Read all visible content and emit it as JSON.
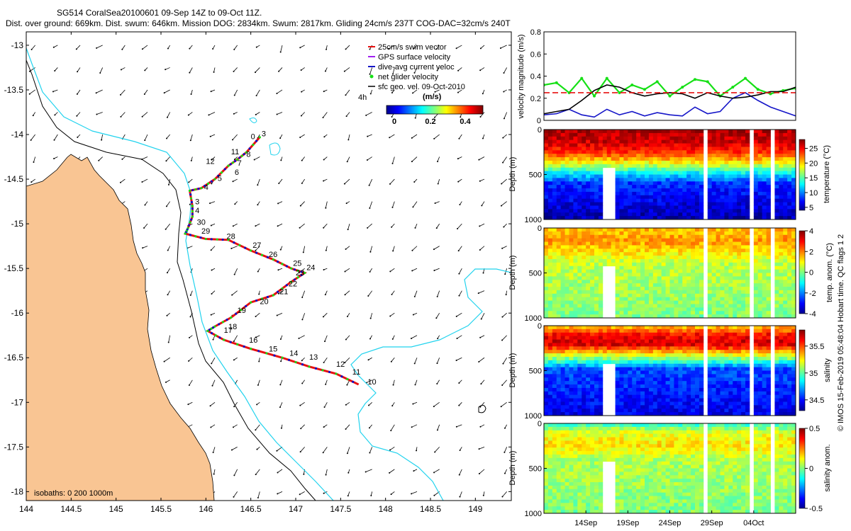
{
  "title": {
    "line1": "SG514 CoralSea20100601 09-Sep 14Z to 09-Oct 11Z.",
    "line2": "Dist. over ground: 669km. Dist. swum: 646km. Mission DOG: 2834km. Swum: 2817km. Gliding 24cm/s 237T COG-DAC=32cm/s 240T"
  },
  "side_caption": "© IMOS 15-Feb-2019 05:48:04 Hobart time. QC flags 1  2",
  "colors": {
    "land": "#f9c593",
    "isobath_200": "#000000",
    "isobath_1000": "#22d3ee",
    "track": "#e81010",
    "track_alt": "#1010c8",
    "swim_vector": "#e81010",
    "gps_velocity": "#a020f0",
    "dac_velocity": "#1515c8",
    "net_velocity": "#16e016",
    "geo_velocity": "#000000"
  },
  "chart_data": [
    {
      "type": "map",
      "xlim": [
        144,
        149.4
      ],
      "ylim": [
        -18.1,
        -12.85
      ],
      "xticks": [
        "144",
        "144.5",
        "145",
        "145.5",
        "146",
        "146.5",
        "147",
        "147.5",
        "148",
        "148.5",
        "149"
      ],
      "yticks": [
        "-13",
        "-13.5",
        "-14",
        "-14.5",
        "-15",
        "-15.5",
        "-16",
        "-16.5",
        "-17",
        "-17.5",
        "-18"
      ],
      "isobath_label": "isobaths: 0   200  1000m",
      "legend": [
        {
          "label": "25cm/s swim vector",
          "color": "#e81010"
        },
        {
          "label": "GPS surface velocity",
          "color": "#a020f0"
        },
        {
          "label": "dive-avg current veloc",
          "color": "#1515c8"
        },
        {
          "label": "net glider velocity",
          "color": "#16e016"
        },
        {
          "label": "sfc geo. vel. 09-Oct-2010",
          "color": "#000000"
        }
      ],
      "colorbar": {
        "label": "(m/s)",
        "ticks": [
          "0",
          "0.2",
          "0.4"
        ],
        "range": [
          0,
          0.5
        ],
        "tag": "4h"
      },
      "track": [
        [
          146.6,
          -14.03
        ],
        [
          146.45,
          -14.2
        ],
        [
          146.35,
          -14.28
        ],
        [
          146.25,
          -14.35
        ],
        [
          146.1,
          -14.5
        ],
        [
          145.95,
          -14.6
        ],
        [
          145.82,
          -14.63
        ],
        [
          145.85,
          -14.8
        ],
        [
          145.85,
          -14.92
        ],
        [
          145.8,
          -15.05
        ],
        [
          145.77,
          -15.11
        ],
        [
          146.0,
          -15.17
        ],
        [
          146.25,
          -15.18
        ],
        [
          146.5,
          -15.3
        ],
        [
          146.75,
          -15.4
        ],
        [
          146.95,
          -15.5
        ],
        [
          147.1,
          -15.55
        ],
        [
          146.95,
          -15.65
        ],
        [
          146.75,
          -15.8
        ],
        [
          146.5,
          -15.88
        ],
        [
          146.28,
          -16.05
        ],
        [
          146.1,
          -16.15
        ],
        [
          146.02,
          -16.2
        ],
        [
          146.2,
          -16.3
        ],
        [
          146.5,
          -16.4
        ],
        [
          146.85,
          -16.5
        ],
        [
          147.15,
          -16.6
        ],
        [
          147.45,
          -16.68
        ],
        [
          147.7,
          -16.8
        ]
      ],
      "track_labels": [
        {
          "text": "0",
          "lon": 146.5,
          "lat": -14.05
        },
        {
          "text": "3",
          "lon": 146.62,
          "lat": -14.02
        },
        {
          "text": "8",
          "lon": 146.45,
          "lat": -14.25
        },
        {
          "text": "11",
          "lon": 146.28,
          "lat": -14.22
        },
        {
          "text": "7",
          "lon": 146.35,
          "lat": -14.35
        },
        {
          "text": "12",
          "lon": 146.0,
          "lat": -14.33
        },
        {
          "text": "6",
          "lon": 146.32,
          "lat": -14.45
        },
        {
          "text": "5",
          "lon": 146.13,
          "lat": -14.52
        },
        {
          "text": "4",
          "lon": 145.98,
          "lat": -14.62
        },
        {
          "text": "3",
          "lon": 145.88,
          "lat": -14.78
        },
        {
          "text": "4",
          "lon": 145.88,
          "lat": -14.88
        },
        {
          "text": "30",
          "lon": 145.9,
          "lat": -15.01
        },
        {
          "text": "29",
          "lon": 145.95,
          "lat": -15.11
        },
        {
          "text": "28",
          "lon": 146.23,
          "lat": -15.17
        },
        {
          "text": "27",
          "lon": 146.52,
          "lat": -15.27
        },
        {
          "text": "26",
          "lon": 146.7,
          "lat": -15.37
        },
        {
          "text": "25",
          "lon": 146.97,
          "lat": -15.47
        },
        {
          "text": "24",
          "lon": 147.12,
          "lat": -15.52
        },
        {
          "text": "23",
          "lon": 147.0,
          "lat": -15.58
        },
        {
          "text": "22",
          "lon": 146.92,
          "lat": -15.7
        },
        {
          "text": "21",
          "lon": 146.82,
          "lat": -15.79
        },
        {
          "text": "20",
          "lon": 146.6,
          "lat": -15.9
        },
        {
          "text": "19",
          "lon": 146.35,
          "lat": -16.0
        },
        {
          "text": "18",
          "lon": 146.25,
          "lat": -16.18
        },
        {
          "text": "17",
          "lon": 146.2,
          "lat": -16.22
        },
        {
          "text": "16",
          "lon": 146.48,
          "lat": -16.33
        },
        {
          "text": "15",
          "lon": 146.7,
          "lat": -16.43
        },
        {
          "text": "14",
          "lon": 146.93,
          "lat": -16.48
        },
        {
          "text": "13",
          "lon": 147.15,
          "lat": -16.52
        },
        {
          "text": "12",
          "lon": 147.45,
          "lat": -16.6
        },
        {
          "text": "11",
          "lon": 147.63,
          "lat": -16.69
        },
        {
          "text": "10",
          "lon": 147.8,
          "lat": -16.8
        }
      ]
    },
    {
      "type": "line",
      "ylabel": "velocity magnitude (m/s)",
      "ylim": [
        0,
        0.8
      ],
      "yticks": [
        "0",
        "0.2",
        "0.4",
        "0.6",
        "0.8"
      ],
      "x_days": [
        0,
        1.5,
        3,
        4.5,
        6,
        7.5,
        9,
        10.5,
        12,
        13.5,
        15,
        16.5,
        18,
        19.5,
        21,
        22.5,
        24,
        25.5,
        27,
        28.5,
        30
      ],
      "series": [
        {
          "name": "net glider velocity",
          "color": "#16e016",
          "values": [
            0.32,
            0.34,
            0.25,
            0.38,
            0.22,
            0.38,
            0.25,
            0.32,
            0.28,
            0.35,
            0.22,
            0.3,
            0.37,
            0.35,
            0.22,
            0.3,
            0.38,
            0.28,
            0.24,
            0.27,
            0.29
          ]
        },
        {
          "name": "dive-avg current",
          "color": "#1515c8",
          "values": [
            0.05,
            0.06,
            0.1,
            0.05,
            0.03,
            0.1,
            0.05,
            0.08,
            0.04,
            0.07,
            0.05,
            0.04,
            0.12,
            0.06,
            0.08,
            0.2,
            0.25,
            0.18,
            0.12,
            0.08,
            0.04
          ]
        },
        {
          "name": "sfc geo. vel.",
          "color": "#000000",
          "values": [
            0.06,
            0.08,
            0.1,
            0.18,
            0.27,
            0.32,
            0.3,
            0.25,
            0.22,
            0.24,
            0.25,
            0.24,
            0.2,
            0.25,
            0.22,
            0.2,
            0.21,
            0.23,
            0.26,
            0.26,
            0.3
          ]
        },
        {
          "name": "25cm/s swim vector",
          "color": "#e81010",
          "values": [
            0.25,
            0.25,
            0.25,
            0.25,
            0.25,
            0.25,
            0.25,
            0.25,
            0.25,
            0.25,
            0.25,
            0.25,
            0.25,
            0.25,
            0.25,
            0.25,
            0.25,
            0.25,
            0.25,
            0.25,
            0.25
          ]
        }
      ]
    },
    {
      "type": "heatmap",
      "ylabel": "Depth (m)",
      "ylim": [
        1000,
        0
      ],
      "yticks": [
        "0",
        "500",
        "1000"
      ],
      "colorbar_label": "temperature (°C)",
      "colorbar_ticks": [
        "25",
        "20",
        "15",
        "10",
        "5"
      ],
      "clim": [
        4,
        28
      ],
      "profile": [
        [
          0,
          27
        ],
        [
          150,
          26
        ],
        [
          250,
          24
        ],
        [
          350,
          20
        ],
        [
          480,
          13
        ],
        [
          600,
          8
        ],
        [
          1000,
          5
        ]
      ]
    },
    {
      "type": "heatmap",
      "ylabel": "Depth (m)",
      "ylim": [
        1000,
        0
      ],
      "yticks": [
        "0",
        "500",
        "1000"
      ],
      "colorbar_label": "temp. anom. (°C)",
      "colorbar_ticks": [
        "4",
        "2",
        "0",
        "-2",
        "-4"
      ],
      "clim": [
        -4,
        4
      ],
      "profile": [
        [
          0,
          1.5
        ],
        [
          150,
          1.8
        ],
        [
          300,
          1.0
        ],
        [
          400,
          0.5
        ],
        [
          1000,
          0.0
        ]
      ]
    },
    {
      "type": "heatmap",
      "ylabel": "Depth (m)",
      "ylim": [
        1000,
        0
      ],
      "yticks": [
        "0",
        "500",
        "1000"
      ],
      "colorbar_label": "salinity",
      "colorbar_ticks": [
        "35.5",
        "35",
        "34.5"
      ],
      "clim": [
        34.3,
        35.8
      ],
      "profile": [
        [
          0,
          35.3
        ],
        [
          100,
          35.6
        ],
        [
          200,
          35.7
        ],
        [
          280,
          35.4
        ],
        [
          380,
          35.0
        ],
        [
          480,
          34.6
        ],
        [
          1000,
          34.45
        ]
      ]
    },
    {
      "type": "heatmap",
      "ylabel": "Depth (m)",
      "ylim": [
        1000,
        0
      ],
      "yticks": [
        "0",
        "500",
        "1000"
      ],
      "colorbar_label": "salinity anom.",
      "colorbar_ticks": [
        "0.5",
        "0",
        "-0.5"
      ],
      "clim": [
        -0.5,
        0.5
      ],
      "profile": [
        [
          0,
          -0.1
        ],
        [
          100,
          0.1
        ],
        [
          250,
          0.15
        ],
        [
          400,
          0.05
        ],
        [
          1000,
          0.0
        ]
      ],
      "date_ticks": [
        {
          "label": "14Sep",
          "day": 5.0
        },
        {
          "label": "19Sep",
          "day": 10.0
        },
        {
          "label": "24Sep",
          "day": 15.0
        },
        {
          "label": "29Sep",
          "day": 20.0
        },
        {
          "label": "04Oct",
          "day": 25.0
        }
      ],
      "xlim_days": [
        0,
        30
      ]
    }
  ]
}
